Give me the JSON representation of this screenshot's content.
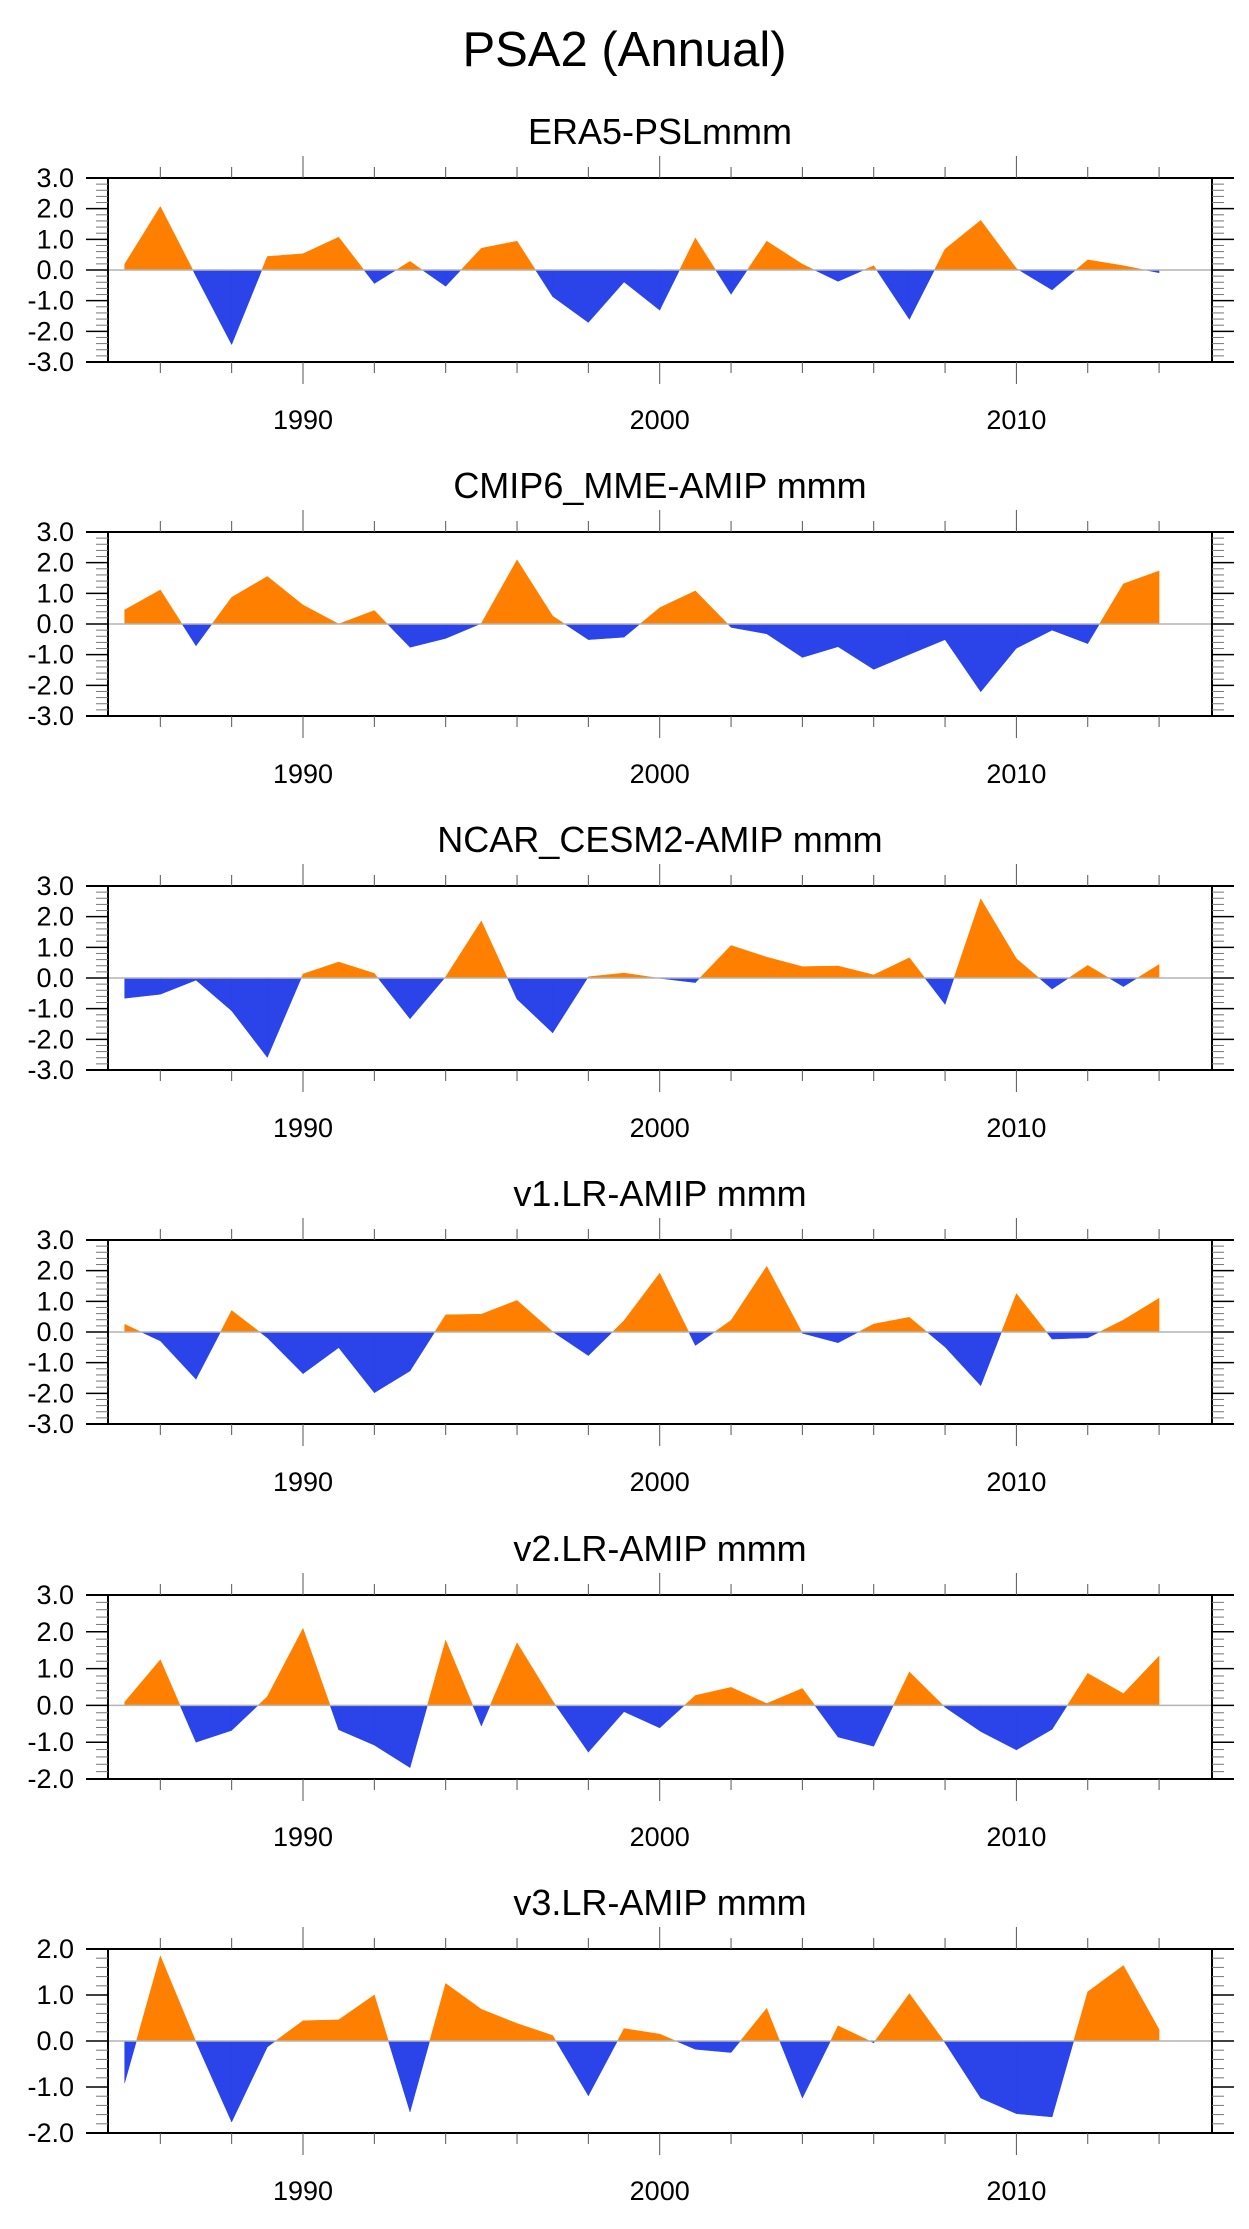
{
  "figure": {
    "title": "PSA2 (Annual)",
    "colors": {
      "positive": "#FF8000",
      "negative": "#2A44EA",
      "zero_line": "#B4B4B4",
      "axis": "#000000"
    }
  },
  "chart_data": [
    {
      "type": "area",
      "title": "ERA5-PSLmmm",
      "xlabel": "",
      "ylabel": "",
      "x": [
        1985,
        1986,
        1987,
        1988,
        1989,
        1990,
        1991,
        1992,
        1993,
        1994,
        1995,
        1996,
        1997,
        1998,
        1999,
        2000,
        2001,
        2002,
        2003,
        2004,
        2005,
        2006,
        2007,
        2008,
        2009,
        2010,
        2011,
        2012,
        2013,
        2014
      ],
      "values": [
        0.19,
        2.07,
        -0.2,
        -2.43,
        0.44,
        0.53,
        1.07,
        -0.44,
        0.28,
        -0.53,
        0.71,
        0.94,
        -0.87,
        -1.71,
        -0.39,
        -1.31,
        1.04,
        -0.79,
        0.94,
        0.19,
        -0.37,
        0.14,
        -1.61,
        0.68,
        1.62,
        0.05,
        -0.65,
        0.33,
        0.14,
        -0.09
      ],
      "ylim": [
        -3.0,
        3.0
      ],
      "yticks": [
        "3.0",
        "2.0",
        "1.0",
        "0.0",
        "-1.0",
        "-2.0",
        "-3.0"
      ],
      "xlim": [
        1984.5,
        2015.5
      ],
      "xticks": [
        "1990",
        "2000",
        "2010"
      ],
      "grid": false
    },
    {
      "type": "area",
      "title": "CMIP6_MME-AMIP  mmm",
      "xlabel": "",
      "ylabel": "",
      "x": [
        1985,
        1986,
        1987,
        1988,
        1989,
        1990,
        1991,
        1992,
        1993,
        1994,
        1995,
        1996,
        1997,
        1998,
        1999,
        2000,
        2001,
        2002,
        2003,
        2004,
        2005,
        2006,
        2007,
        2008,
        2009,
        2010,
        2011,
        2012,
        2013,
        2014
      ],
      "values": [
        0.46,
        1.11,
        -0.71,
        0.87,
        1.55,
        0.62,
        0.0,
        0.44,
        -0.76,
        -0.47,
        0.02,
        2.09,
        0.26,
        -0.51,
        -0.43,
        0.53,
        1.08,
        -0.11,
        -0.32,
        -1.09,
        -0.74,
        -1.48,
        -0.99,
        -0.51,
        -2.21,
        -0.79,
        -0.2,
        -0.64,
        1.31,
        1.73
      ],
      "ylim": [
        -3.0,
        3.0
      ],
      "yticks": [
        "3.0",
        "2.0",
        "1.0",
        "0.0",
        "-1.0",
        "-2.0",
        "-3.0"
      ],
      "xlim": [
        1984.5,
        2015.5
      ],
      "xticks": [
        "1990",
        "2000",
        "2010"
      ],
      "grid": false
    },
    {
      "type": "area",
      "title": "NCAR_CESM2-AMIP  mmm",
      "xlabel": "",
      "ylabel": "",
      "x": [
        1985,
        1986,
        1987,
        1988,
        1989,
        1990,
        1991,
        1992,
        1993,
        1994,
        1995,
        1996,
        1997,
        1998,
        1999,
        2000,
        2001,
        2002,
        2003,
        2004,
        2005,
        2006,
        2007,
        2008,
        2009,
        2010,
        2011,
        2012,
        2013,
        2014
      ],
      "values": [
        -0.66,
        -0.53,
        -0.07,
        -1.07,
        -2.59,
        0.13,
        0.52,
        0.15,
        -1.33,
        0.04,
        1.86,
        -0.69,
        -1.79,
        0.04,
        0.16,
        -0.01,
        -0.15,
        1.06,
        0.68,
        0.37,
        0.39,
        0.1,
        0.66,
        -0.86,
        2.58,
        0.63,
        -0.36,
        0.41,
        -0.28,
        0.44
      ],
      "ylim": [
        -3.0,
        3.0
      ],
      "yticks": [
        "3.0",
        "2.0",
        "1.0",
        "0.0",
        "-1.0",
        "-2.0",
        "-3.0"
      ],
      "xlim": [
        1984.5,
        2015.5
      ],
      "xticks": [
        "1990",
        "2000",
        "2010"
      ],
      "grid": false
    },
    {
      "type": "area",
      "title": "v1.LR-AMIP  mmm",
      "xlabel": "",
      "ylabel": "",
      "x": [
        1985,
        1986,
        1987,
        1988,
        1989,
        1990,
        1991,
        1992,
        1993,
        1994,
        1995,
        1996,
        1997,
        1998,
        1999,
        2000,
        2001,
        2002,
        2003,
        2004,
        2005,
        2006,
        2007,
        2008,
        2009,
        2010,
        2011,
        2012,
        2013,
        2014
      ],
      "values": [
        0.25,
        -0.29,
        -1.54,
        0.7,
        -0.19,
        -1.36,
        -0.51,
        -1.98,
        -1.27,
        0.56,
        0.58,
        1.03,
        0.01,
        -0.77,
        0.37,
        1.92,
        -0.44,
        0.38,
        2.14,
        -0.04,
        -0.35,
        0.26,
        0.48,
        -0.49,
        -1.75,
        1.25,
        -0.23,
        -0.19,
        0.39,
        1.1
      ],
      "ylim": [
        -3.0,
        3.0
      ],
      "yticks": [
        "3.0",
        "2.0",
        "1.0",
        "0.0",
        "-1.0",
        "-2.0",
        "-3.0"
      ],
      "xlim": [
        1984.5,
        2015.5
      ],
      "xticks": [
        "1990",
        "2000",
        "2010"
      ],
      "grid": false
    },
    {
      "type": "area",
      "title": "v2.LR-AMIP  mmm",
      "xlabel": "",
      "ylabel": "",
      "x": [
        1985,
        1986,
        1987,
        1988,
        1989,
        1990,
        1991,
        1992,
        1993,
        1994,
        1995,
        1996,
        1997,
        1998,
        1999,
        2000,
        2001,
        2002,
        2003,
        2004,
        2005,
        2006,
        2007,
        2008,
        2009,
        2010,
        2011,
        2012,
        2013,
        2014
      ],
      "values": [
        0.09,
        1.24,
        -1.0,
        -0.68,
        0.24,
        2.09,
        -0.66,
        -1.08,
        -1.69,
        1.77,
        -0.56,
        1.7,
        0.12,
        -1.27,
        -0.17,
        -0.61,
        0.27,
        0.49,
        0.05,
        0.46,
        -0.86,
        -1.11,
        0.91,
        -0.05,
        -0.71,
        -1.21,
        -0.65,
        0.87,
        0.32,
        1.34
      ],
      "ylim": [
        -2.0,
        3.0
      ],
      "yticks": [
        "3.0",
        "2.0",
        "1.0",
        "0.0",
        "-1.0",
        "-2.0"
      ],
      "xlim": [
        1984.5,
        2015.5
      ],
      "xticks": [
        "1990",
        "2000",
        "2010"
      ],
      "grid": false
    },
    {
      "type": "area",
      "title": "v3.LR-AMIP  mmm",
      "xlabel": "",
      "ylabel": "",
      "x": [
        1985,
        1986,
        1987,
        1988,
        1989,
        1990,
        1991,
        1992,
        1993,
        1994,
        1995,
        1996,
        1997,
        1998,
        1999,
        2000,
        2001,
        2002,
        2003,
        2004,
        2005,
        2006,
        2007,
        2008,
        2009,
        2010,
        2011,
        2012,
        2013,
        2014
      ],
      "values": [
        -0.91,
        1.85,
        -0.02,
        -1.76,
        -0.13,
        0.44,
        0.46,
        1.0,
        -1.54,
        1.25,
        0.69,
        0.38,
        0.12,
        -1.19,
        0.27,
        0.15,
        -0.18,
        -0.25,
        0.71,
        -1.24,
        0.33,
        -0.04,
        1.03,
        -0.04,
        -1.24,
        -1.58,
        -1.65,
        1.07,
        1.64,
        0.25
      ],
      "ylim": [
        -2.0,
        2.0
      ],
      "yticks": [
        "2.0",
        "1.0",
        "0.0",
        "-1.0",
        "-2.0"
      ],
      "xlim": [
        1984.5,
        2015.5
      ],
      "xticks": [
        "1990",
        "2000",
        "2010"
      ],
      "grid": false
    }
  ]
}
